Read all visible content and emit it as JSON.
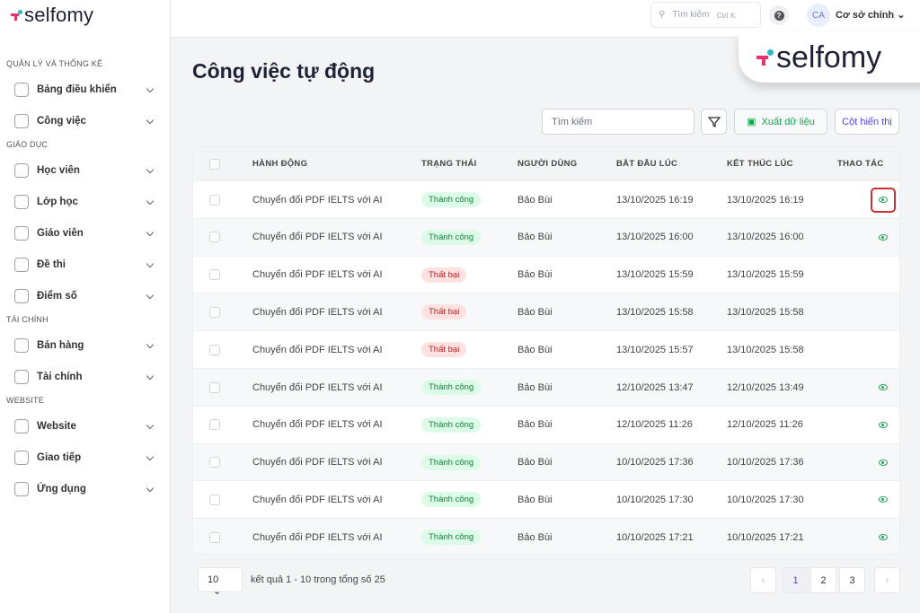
{
  "brand": {
    "name": "selfomy"
  },
  "sidebar": {
    "sections": [
      {
        "title": "QUẢN LÝ VÀ THỐNG KÊ",
        "items": [
          {
            "label": "Bảng điều khiển",
            "icon": "dashboard-icon"
          },
          {
            "label": "Công việc",
            "icon": "task-icon"
          }
        ]
      },
      {
        "title": "GIÁO DỤC",
        "items": [
          {
            "label": "Học viên",
            "icon": "student-icon"
          },
          {
            "label": "Lớp học",
            "icon": "classroom-icon"
          },
          {
            "label": "Giáo viên",
            "icon": "teacher-icon"
          },
          {
            "label": "Đề thi",
            "icon": "exam-icon"
          },
          {
            "label": "Điểm số",
            "icon": "grade-icon"
          }
        ]
      },
      {
        "title": "TÀI CHÍNH",
        "items": [
          {
            "label": "Bán hàng",
            "icon": "sales-icon"
          },
          {
            "label": "Tài chính",
            "icon": "finance-icon"
          }
        ]
      },
      {
        "title": "WEBSITE",
        "items": [
          {
            "label": "Website",
            "icon": "globe-icon"
          },
          {
            "label": "Giao tiếp",
            "icon": "chat-icon"
          },
          {
            "label": "Ứng dụng",
            "icon": "apps-icon"
          }
        ]
      }
    ]
  },
  "header": {
    "search_placeholder": "Tìm kiếm",
    "shortcut": "Ctrl K",
    "help": "?",
    "avatar": "CA",
    "branch": "Cơ sở chính"
  },
  "page": {
    "title": "Công việc tự động",
    "search_placeholder": "Tìm kiếm",
    "export_label": "Xuất dữ liệu",
    "columns_label": "Cột hiển thị"
  },
  "table": {
    "headers": [
      "HÀNH ĐỘNG",
      "TRẠNG THÁI",
      "NGƯỜI DÙNG",
      "BẮT ĐẦU LÚC",
      "KẾT THÚC LÚC",
      "THAO TÁC"
    ],
    "rows": [
      {
        "action": "Chuyển đổi PDF IELTS với AI",
        "status": "Thành công",
        "ok": true,
        "user": "Bảo Bùi",
        "start": "13/10/2025 16:19",
        "end": "13/10/2025 16:19"
      },
      {
        "action": "Chuyển đổi PDF IELTS với AI",
        "status": "Thành công",
        "ok": true,
        "user": "Bảo Bùi",
        "start": "13/10/2025 16:00",
        "end": "13/10/2025 16:00"
      },
      {
        "action": "Chuyển đổi PDF IELTS với AI",
        "status": "Thất bại",
        "ok": false,
        "user": "Bảo Bùi",
        "start": "13/10/2025 15:59",
        "end": "13/10/2025 15:59"
      },
      {
        "action": "Chuyển đổi PDF IELTS với AI",
        "status": "Thất bại",
        "ok": false,
        "user": "Bảo Bùi",
        "start": "13/10/2025 15:58",
        "end": "13/10/2025 15:58"
      },
      {
        "action": "Chuyển đổi PDF IELTS với AI",
        "status": "Thất bại",
        "ok": false,
        "user": "Bảo Bùi",
        "start": "13/10/2025 15:57",
        "end": "13/10/2025 15:58"
      },
      {
        "action": "Chuyển đổi PDF IELTS với AI",
        "status": "Thành công",
        "ok": true,
        "user": "Bảo Bùi",
        "start": "12/10/2025 13:47",
        "end": "12/10/2025 13:49"
      },
      {
        "action": "Chuyển đổi PDF IELTS với AI",
        "status": "Thành công",
        "ok": true,
        "user": "Bảo Bùi",
        "start": "12/10/2025 11:26",
        "end": "12/10/2025 11:26"
      },
      {
        "action": "Chuyển đổi PDF IELTS với AI",
        "status": "Thành công",
        "ok": true,
        "user": "Bảo Bùi",
        "start": "10/10/2025 17:36",
        "end": "10/10/2025 17:36"
      },
      {
        "action": "Chuyển đổi PDF IELTS với AI",
        "status": "Thành công",
        "ok": true,
        "user": "Bảo Bùi",
        "start": "10/10/2025 17:30",
        "end": "10/10/2025 17:30"
      },
      {
        "action": "Chuyển đổi PDF IELTS với AI",
        "status": "Thành công",
        "ok": true,
        "user": "Bảo Bùi",
        "start": "10/10/2025 17:21",
        "end": "10/10/2025 17:21"
      }
    ]
  },
  "pagination": {
    "page_size": "10",
    "result_text": "kết quả 1 - 10 trong tổng số 25",
    "pages": [
      "1",
      "2",
      "3"
    ],
    "current": "1",
    "prev": "‹",
    "next": "›"
  },
  "colors": {
    "success": "#15803d",
    "fail": "#b91c1c",
    "accent": "#4f46e5",
    "highlight": "#c53030"
  }
}
